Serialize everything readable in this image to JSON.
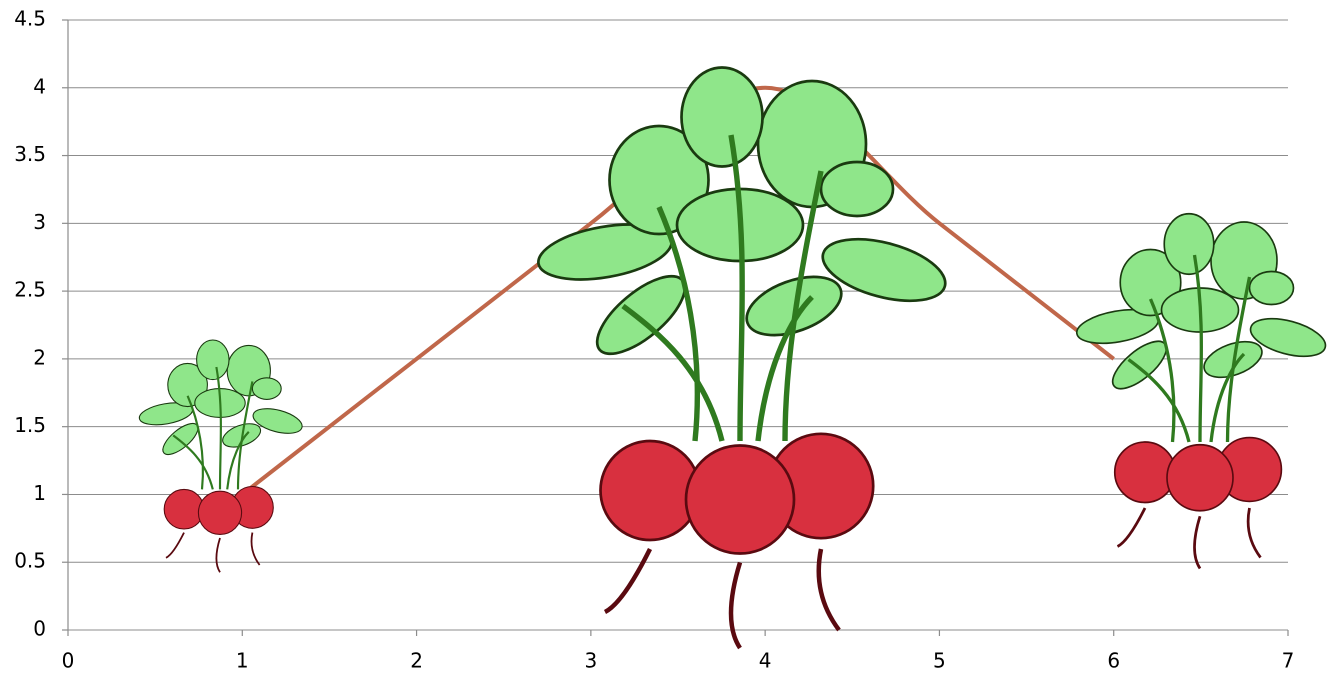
{
  "chart_data": {
    "type": "line",
    "smooth": true,
    "x": [
      1,
      3,
      4,
      5,
      6
    ],
    "values": [
      1,
      3,
      4,
      3,
      2
    ],
    "color": "#c0674a",
    "xlim": [
      0,
      7
    ],
    "xticks": [
      0,
      1,
      2,
      3,
      4,
      5,
      6,
      7
    ],
    "ylim": [
      0,
      4.5
    ],
    "yticks": [
      0,
      0.5,
      1,
      1.5,
      2,
      2.5,
      3,
      3.5,
      4,
      4.5
    ],
    "grid": true
  }
}
